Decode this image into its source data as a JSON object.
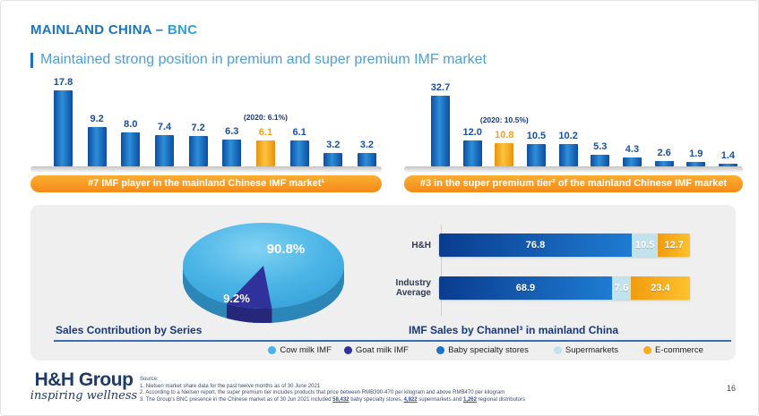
{
  "header": {
    "title_main": "MAINLAND CHINA –",
    "title_accent": "BNC",
    "subtitle": "Maintained strong position in premium and super premium IMF market"
  },
  "colors": {
    "title_blue": "#1B75BC",
    "accent_light_blue": "#2E9FD9",
    "bar_blue": "#1B72C8",
    "highlight_orange": "#F5A119",
    "banner_orange": "#F58A18",
    "panel_gray": "#EFEFF0",
    "pie_cow_blue": "#45B5E8",
    "pie_goat_indigo": "#31319B",
    "supermarket_light_blue": "#C2E2EE"
  },
  "chart_data": [
    {
      "id": "left_bars",
      "type": "bar",
      "values": [
        17.8,
        9.2,
        8.0,
        7.4,
        7.2,
        6.3,
        6.1,
        6.1,
        3.2,
        3.2
      ],
      "highlight_index": 6,
      "highlight_annotation": "(2020: 6.1%)",
      "caption": "#7 IMF player in the mainland Chinese IMF market¹"
    },
    {
      "id": "right_bars",
      "type": "bar",
      "values": [
        32.7,
        12.0,
        10.8,
        10.5,
        10.2,
        5.3,
        4.3,
        2.6,
        1.9,
        1.4
      ],
      "highlight_index": 2,
      "highlight_annotation": "(2020: 10.5%)",
      "caption": "#3 in the super premium tier² of the mainland Chinese IMF market"
    },
    {
      "id": "series_pie",
      "type": "pie",
      "title": "Sales Contribution by Series",
      "labels": [
        "Cow milk IMF",
        "Goat milk IMF"
      ],
      "values": [
        90.8,
        9.2
      ],
      "value_labels": [
        "90.8%",
        "9.2%"
      ]
    },
    {
      "id": "channel_stacked",
      "type": "bar-stacked",
      "title": "IMF Sales by Channel³ in mainland China",
      "categories": [
        "H&H",
        "Industry Average"
      ],
      "series": [
        {
          "name": "Baby specialty stores",
          "values": [
            76.8,
            68.9
          ]
        },
        {
          "name": "Supermarkets",
          "values": [
            10.5,
            7.6
          ]
        },
        {
          "name": "E-commerce",
          "values": [
            12.7,
            23.4
          ]
        }
      ]
    }
  ],
  "footer": {
    "logo_line1": "H&H Group",
    "logo_line2": "inspiring wellness",
    "source_label": "Source:",
    "source_1": "1. Nielsen market share data for the past twelve months as of 30 June 2021",
    "source_2": "2. According to a Nielsen report, the super premium tier includes products that price between RMB390-470 per kilogram and above RMB470 per kilogram",
    "source_3": {
      "a": "3. The Group's BNC presence in the Chinese market as of 30 Jun 2021 included ",
      "n1": "58,432",
      "b": " baby specialty stores, ",
      "n2": "4,822",
      "c": " supermarkets and ",
      "n3": "1,262",
      "d": " regional distributors"
    },
    "page_number": "16"
  }
}
